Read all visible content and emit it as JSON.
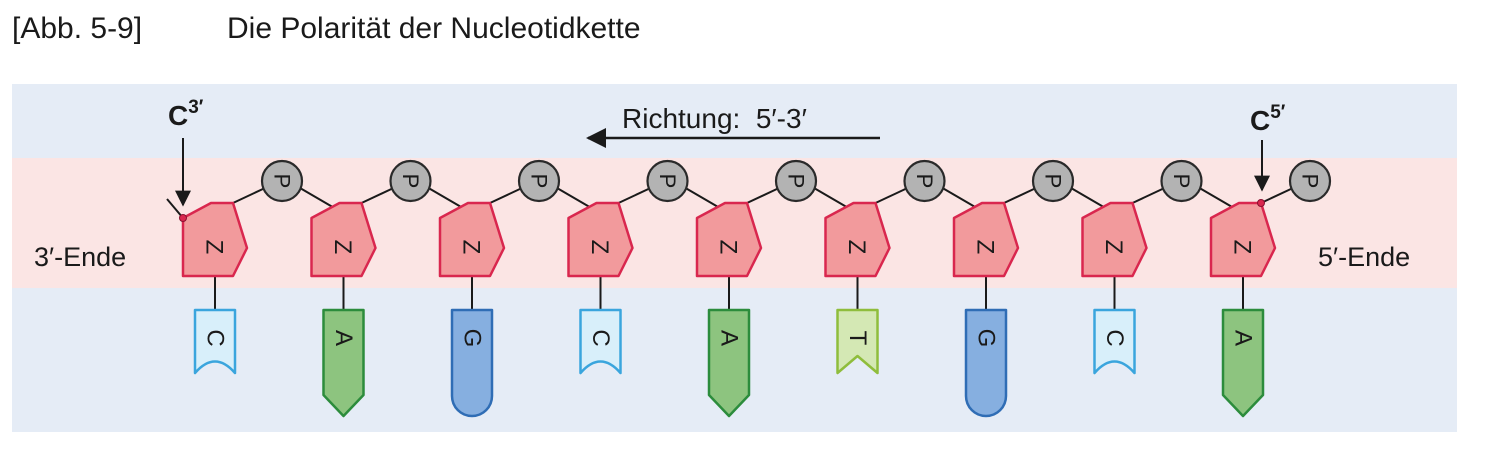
{
  "caption": {
    "figure": "[Abb. 5-9]",
    "title": "Die Polarität der Nucleotidkette"
  },
  "direction_label": "Richtung:  5′-3′",
  "end_left": "3′-Ende",
  "end_right": "5′-Ende",
  "carbon_left": {
    "base": "C",
    "sup": "3′"
  },
  "carbon_right": {
    "base": "C",
    "sup": "5′"
  },
  "sugar_label": "Z",
  "phosphate_label": "P",
  "bases": [
    "C",
    "A",
    "G",
    "C",
    "A",
    "T",
    "G",
    "C",
    "A"
  ],
  "colors": {
    "band_blue": "#e5ecf6",
    "band_pink": "#fbe5e4",
    "sugar_fill": "#f29a9c",
    "sugar_stroke": "#d9274e",
    "phosphate_fill": "#b3b3b3",
    "C": {
      "fill": "#d8effa",
      "stroke": "#3aa5dd"
    },
    "A": {
      "fill": "#8dc47f",
      "stroke": "#2c8c3c"
    },
    "G": {
      "fill": "#86afe0",
      "stroke": "#2f6db5"
    },
    "T": {
      "fill": "#d4e8b4",
      "stroke": "#8fbd3c"
    }
  }
}
